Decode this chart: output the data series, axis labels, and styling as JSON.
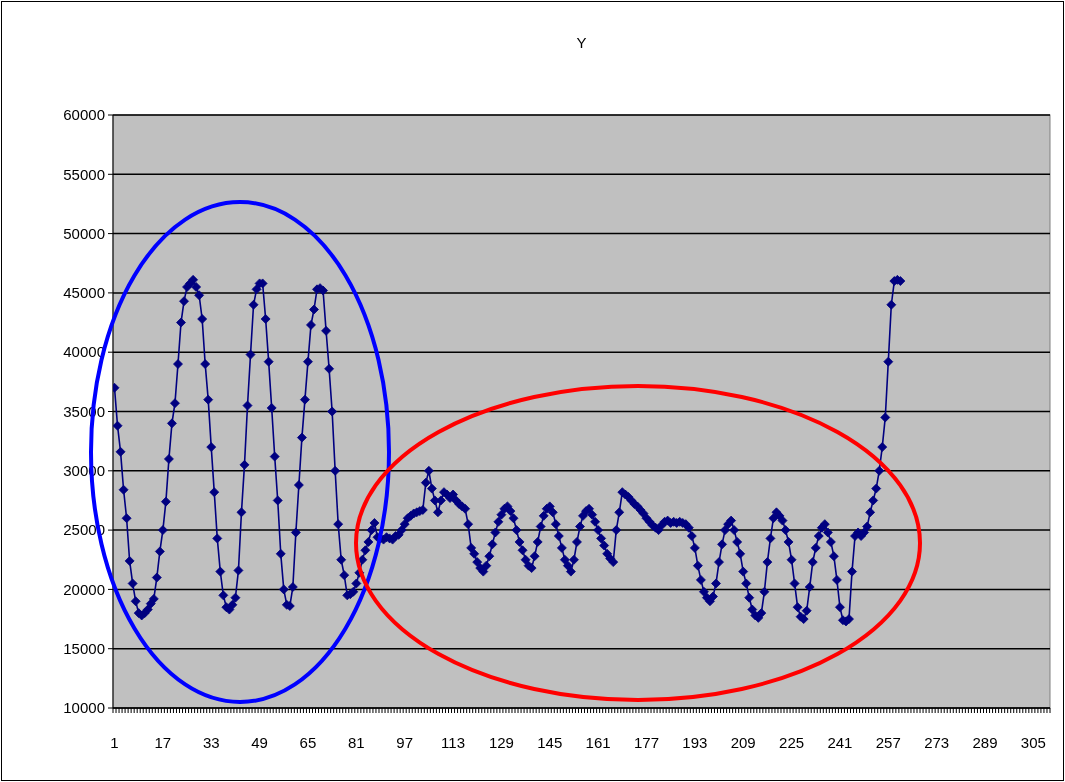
{
  "chart_data": {
    "type": "line",
    "title": "Y",
    "categories": [
      "1",
      null,
      null,
      null,
      null,
      null,
      null,
      null,
      null,
      null,
      null,
      null,
      null,
      null,
      null,
      null,
      "17",
      null,
      null,
      null,
      null,
      null,
      null,
      null,
      null,
      null,
      null,
      null,
      null,
      null,
      null,
      null,
      "33",
      null,
      null,
      null,
      null,
      null,
      null,
      null,
      null,
      null,
      null,
      null,
      null,
      null,
      null,
      null,
      "49",
      null,
      null,
      null,
      null,
      null,
      null,
      null,
      null,
      null,
      null,
      null,
      null,
      null,
      null,
      null,
      "65",
      null,
      null,
      null,
      null,
      null,
      null,
      null,
      null,
      null,
      null,
      null,
      null,
      null,
      null,
      null,
      "81",
      null,
      null,
      null,
      null,
      null,
      null,
      null,
      null,
      null,
      null,
      null,
      null,
      null,
      null,
      null,
      "97",
      null,
      null,
      null,
      null,
      null,
      null,
      null,
      null,
      null,
      null,
      null,
      null,
      null,
      null,
      null,
      "113",
      null,
      null,
      null,
      null,
      null,
      null,
      null,
      null,
      null,
      null,
      null,
      null,
      null,
      null,
      null,
      "129",
      null,
      null,
      null,
      null,
      null,
      null,
      null,
      null,
      null,
      null,
      null,
      null,
      null,
      null,
      null,
      "145",
      null,
      null,
      null,
      null,
      null,
      null,
      null,
      null,
      null,
      null,
      null,
      null,
      null,
      null,
      null,
      "161",
      null,
      null,
      null,
      null,
      null,
      null,
      null,
      null,
      null,
      null,
      null,
      null,
      null,
      null,
      null,
      "177",
      null,
      null,
      null,
      null,
      null,
      null,
      null,
      null,
      null,
      null,
      null,
      null,
      null,
      null,
      null,
      "193",
      null,
      null,
      null,
      null,
      null,
      null,
      null,
      null,
      null,
      null,
      null,
      null,
      null,
      null,
      null,
      "209",
      null,
      null,
      null,
      null,
      null,
      null,
      null,
      null,
      null,
      null,
      null,
      null,
      null,
      null,
      null,
      "225",
      null,
      null,
      null,
      null,
      null,
      null,
      null,
      null,
      null,
      null,
      null,
      null,
      null,
      null,
      null,
      "241",
      null,
      null,
      null,
      null,
      null,
      null,
      null,
      null,
      null,
      null,
      null,
      null,
      null,
      null,
      null,
      "257",
      null,
      null,
      null,
      null,
      null,
      null,
      null,
      null,
      null,
      null,
      null,
      null,
      null,
      null,
      null,
      "273",
      null,
      null,
      null,
      null,
      null,
      null,
      null,
      null,
      null,
      null,
      null,
      null,
      null,
      null,
      null,
      "289",
      null,
      null,
      null,
      null,
      null,
      null,
      null,
      null,
      null,
      null,
      null,
      null,
      null,
      null,
      null,
      "305",
      null,
      null,
      null,
      null,
      null
    ],
    "series": [
      {
        "color": "#000080",
        "values": [
          37000,
          33800,
          31600,
          28400,
          26000,
          22400,
          20500,
          19000,
          18000,
          17800,
          18000,
          18300,
          18800,
          19200,
          21000,
          23200,
          25000,
          27400,
          31000,
          34000,
          35700,
          39000,
          42500,
          44300,
          45500,
          45800,
          46100,
          45500,
          44800,
          42800,
          39000,
          36000,
          32000,
          28200,
          24300,
          21500,
          19500,
          18500,
          18300,
          18700,
          19300,
          21600,
          26500,
          30500,
          35500,
          39800,
          44000,
          45300,
          45800,
          45800,
          42800,
          39200,
          35300,
          31200,
          27500,
          23000,
          20000,
          18700,
          18600,
          20200,
          24800,
          28800,
          32800,
          36000,
          39200,
          42300,
          43600,
          45300,
          45400,
          45200,
          41800,
          38600,
          35000,
          30000,
          25500,
          22500,
          21200,
          19500,
          19600,
          19800,
          20500,
          21400,
          22500,
          23300,
          24000,
          25000,
          25600,
          24400,
          24300,
          24200,
          24400,
          24300,
          24200,
          24500,
          24600,
          25000,
          25500,
          26000,
          26200,
          26400,
          26500,
          26600,
          26700,
          29000,
          30000,
          28500,
          27500,
          26500,
          27500,
          28200,
          28000,
          27700,
          28000,
          27500,
          27200,
          27000,
          26800,
          25500,
          23500,
          23000,
          22300,
          21800,
          21500,
          22000,
          22800,
          23800,
          24800,
          25700,
          26300,
          26800,
          27000,
          26600,
          26000,
          25000,
          24000,
          23300,
          22500,
          22000,
          21800,
          22800,
          24000,
          25300,
          26200,
          26800,
          27000,
          26500,
          25500,
          24500,
          23500,
          22500,
          22000,
          21500,
          22500,
          24000,
          25300,
          26200,
          26600,
          26800,
          26300,
          25700,
          25000,
          24300,
          23700,
          23000,
          22600,
          22300,
          25000,
          26500,
          28200,
          28000,
          27800,
          27500,
          27200,
          27000,
          26700,
          26400,
          26000,
          25700,
          25400,
          25200,
          25000,
          25400,
          25700,
          25800,
          25600,
          25700,
          25600,
          25700,
          25600,
          25500,
          25200,
          24500,
          23500,
          22000,
          20800,
          19800,
          19300,
          19000,
          19400,
          20500,
          22300,
          23800,
          25000,
          25500,
          25800,
          25000,
          24000,
          23000,
          21500,
          20500,
          19300,
          18300,
          17800,
          17600,
          18000,
          19800,
          22300,
          24300,
          26000,
          26500,
          26200,
          25800,
          25000,
          24000,
          22500,
          20500,
          18500,
          17700,
          17500,
          18200,
          20200,
          22300,
          23500,
          24500,
          25200,
          25500,
          24800,
          24000,
          22800,
          20800,
          18500,
          17400,
          17300,
          17500,
          21500,
          24500,
          24800,
          24500,
          24800,
          25300,
          26500,
          27500,
          28500,
          30000,
          32000,
          34500,
          39200,
          44000,
          46000,
          46100,
          46000,
          null,
          null,
          null,
          null,
          null,
          null,
          null,
          null,
          null,
          null,
          null,
          null,
          null,
          null,
          null,
          null,
          null,
          null,
          null,
          null,
          null,
          null,
          null,
          null,
          null,
          null,
          null,
          null,
          null,
          null,
          null,
          null,
          null,
          null,
          null,
          null,
          null,
          null,
          null,
          null,
          null,
          null,
          null,
          null,
          null,
          null,
          null,
          null,
          null
        ]
      }
    ],
    "ylim": [
      10000,
      60000
    ],
    "yticks": [
      10000,
      15000,
      20000,
      25000,
      30000,
      35000,
      40000,
      45000,
      50000,
      55000,
      60000
    ],
    "grid": "y",
    "marker": "diamond",
    "line_style": "solid"
  }
}
